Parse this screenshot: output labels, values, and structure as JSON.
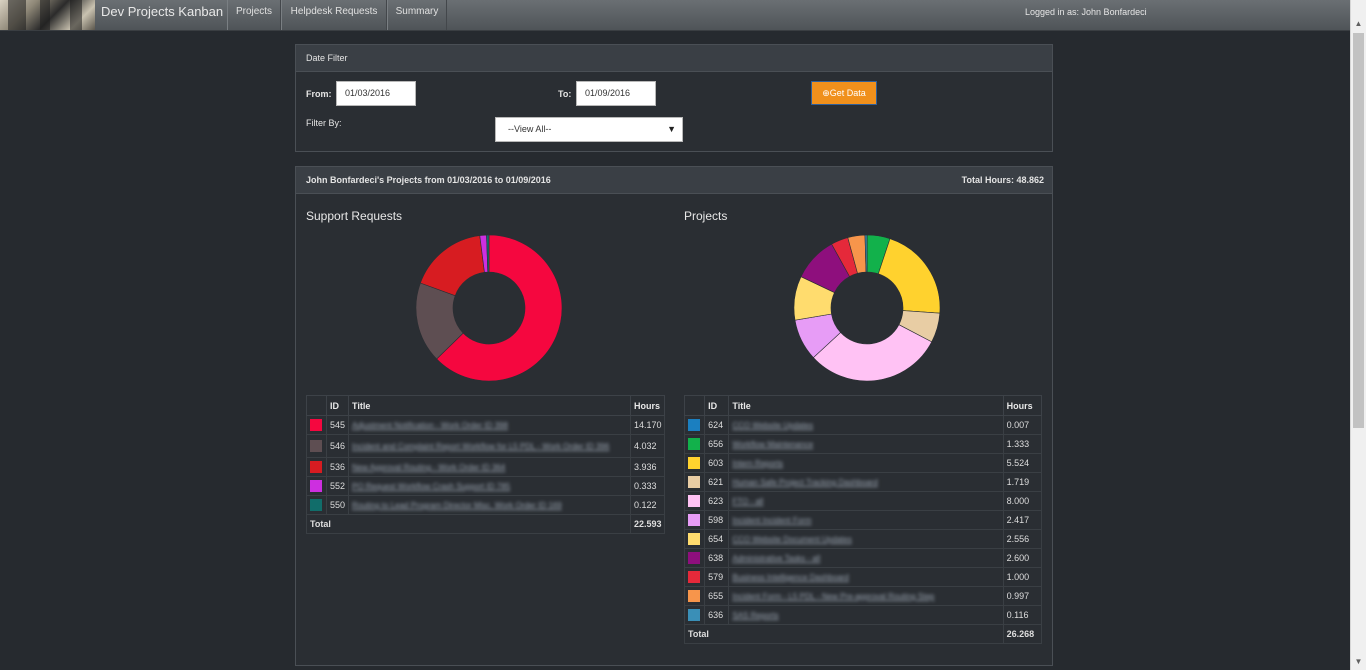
{
  "nav": {
    "brand": "Dev Projects Kanban",
    "items": [
      "Projects",
      "Helpdesk Requests",
      "Summary"
    ],
    "login": "Logged in as:  John Bonfardeci"
  },
  "filter": {
    "title": "Date Filter",
    "from_label": "From:",
    "from_value": "01/03/2016",
    "to_label": "To:",
    "to_value": "01/09/2016",
    "button": "⊕Get Data",
    "filter_by_label": "Filter By:",
    "filter_value": "--View All--"
  },
  "results": {
    "heading": "John Bonfardeci's Projects from 01/03/2016 to 01/09/2016",
    "total_hours": "Total Hours: 48.862",
    "support": {
      "title": "Support Requests",
      "headers": [
        "",
        "ID",
        "Title",
        "Hours"
      ],
      "rows": [
        {
          "id": "545",
          "title": "Adjustment Notification - Work Order ID 398",
          "hours": "14.170",
          "color": "#f5073f"
        },
        {
          "id": "546",
          "title": "Incident and Complaint Report Workflow for L5 PDL - Work Order ID 396",
          "hours": "4.032",
          "color": "#5e4e52"
        },
        {
          "id": "536",
          "title": "New Approval Routing - Work Order ID 364",
          "hours": "3.936",
          "color": "#d71c21"
        },
        {
          "id": "552",
          "title": "PO Request Workflow Crash Support ID 785",
          "hours": "0.333",
          "color": "#cd2fe0"
        },
        {
          "id": "550",
          "title": "Routing to Lead Program Director Misc. Work Order ID 169",
          "hours": "0.122",
          "color": "#116d6a"
        }
      ],
      "total_label": "Total",
      "total": "22.593"
    },
    "projects": {
      "title": "Projects",
      "headers": [
        "",
        "ID",
        "Title",
        "Hours"
      ],
      "rows": [
        {
          "id": "624",
          "title": "CCO Website Updates",
          "hours": "0.007",
          "color": "#1b7fc0"
        },
        {
          "id": "656",
          "title": "Workflow Maintenance",
          "hours": "1.333",
          "color": "#12b14b"
        },
        {
          "id": "603",
          "title": "Intern Reports",
          "hours": "5.524",
          "color": "#ffd22e"
        },
        {
          "id": "621",
          "title": "Human Safe Project Tracking Dashboard",
          "hours": "1.719",
          "color": "#e8cda4"
        },
        {
          "id": "623",
          "title": "FTO - all",
          "hours": "8.000",
          "color": "#ffc2f4"
        },
        {
          "id": "598",
          "title": "Incident Incident Form",
          "hours": "2.417",
          "color": "#e79cf6"
        },
        {
          "id": "654",
          "title": "CCO Website Document Updates",
          "hours": "2.556",
          "color": "#ffdc6e"
        },
        {
          "id": "638",
          "title": "Administrative Tasks - all",
          "hours": "2.600",
          "color": "#8e0f7d"
        },
        {
          "id": "579",
          "title": "Business Intelligence Dashboard",
          "hours": "1.000",
          "color": "#e5293a"
        },
        {
          "id": "655",
          "title": "Incident Form - L5 PDL - New Pre-approval Routing Step",
          "hours": "0.997",
          "color": "#f7954b"
        },
        {
          "id": "636",
          "title": "SAS Reports",
          "hours": "0.116",
          "color": "#3a8fb7"
        }
      ],
      "total_label": "Total",
      "total": "26.268"
    }
  }
}
